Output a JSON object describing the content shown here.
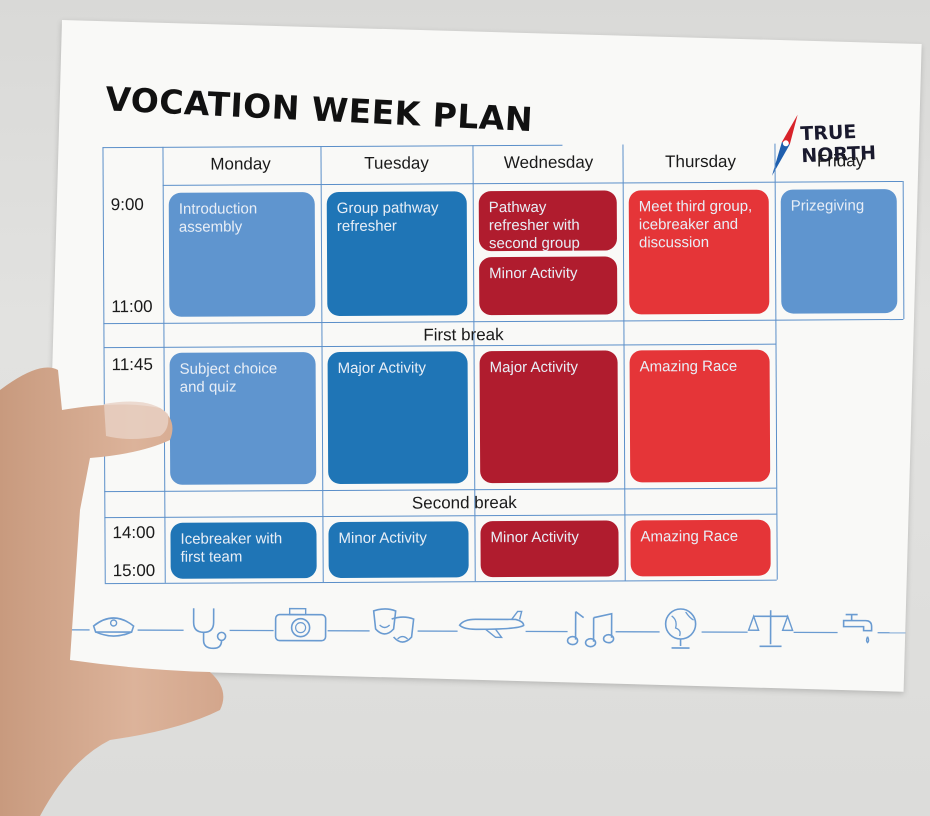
{
  "title": "VOCATION WEEK PLAN",
  "logo": {
    "line1": "TRUE",
    "line2": "NORTH"
  },
  "days": [
    "Monday",
    "Tuesday",
    "Wednesday",
    "Thursday",
    "Friday"
  ],
  "times": {
    "t1": "9:00",
    "t2": "11:00",
    "t3": "11:45",
    "t4": "14:00",
    "t5": "15:00"
  },
  "breaks": {
    "first": "First break",
    "second": "Second break"
  },
  "sessions": {
    "mon1": "Introduction assembly",
    "tue1": "Group pathway refresher",
    "wed1a": "Pathway refresher with second group",
    "wed1b": "Minor Activity",
    "thu1": "Meet third group, icebreaker and discussion",
    "fri1": "Prizegiving",
    "mon2": "Subject choice and quiz",
    "tue2": "Major Activity",
    "wed2": "Major Activity",
    "thu2": "Amazing Race",
    "mon3": "Icebreaker with first team",
    "tue3": "Minor Activity",
    "wed3": "Minor Activity",
    "thu3": "Amazing Race"
  },
  "colors": {
    "light_blue": "#5f95cf",
    "dark_blue": "#1f75b6",
    "dark_red": "#b01c2e",
    "bright_red": "#e53538",
    "grid_line": "#5b8fc9"
  },
  "icons": [
    "police-cap-icon",
    "stethoscope-icon",
    "camera-icon",
    "theatre-masks-icon",
    "airplane-icon",
    "music-notes-icon",
    "globe-icon",
    "scales-icon",
    "tap-icon"
  ]
}
